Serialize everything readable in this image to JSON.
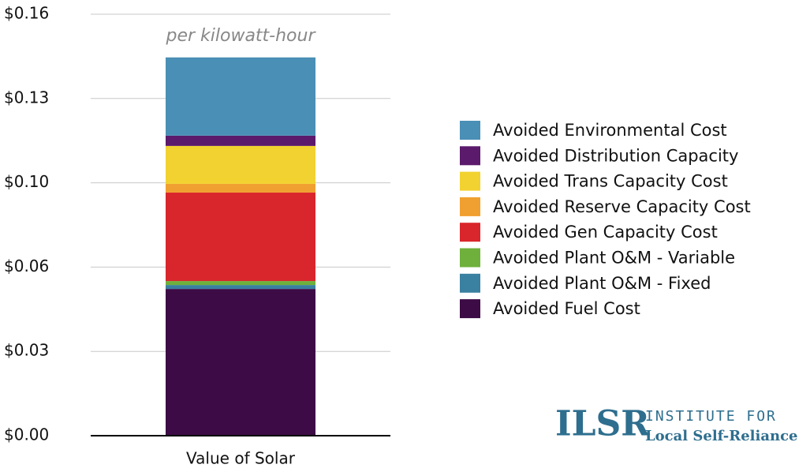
{
  "chart_data": {
    "type": "stacked_bar",
    "subtitle": "per kilowatt-hour",
    "categories": [
      "Value of Solar"
    ],
    "series": [
      {
        "name": "Avoided Fuel Cost",
        "color": "#3d0b45",
        "values": [
          0.0557
        ]
      },
      {
        "name": "Avoided Plant O&M - Fixed",
        "color": "#3a80a0",
        "values": [
          0.0015
        ]
      },
      {
        "name": "Avoided Plant O&M - Variable",
        "color": "#6fb03c",
        "values": [
          0.0015
        ]
      },
      {
        "name": "Avoided Gen Capacity Cost",
        "color": "#d9262c",
        "values": [
          0.0336
        ]
      },
      {
        "name": "Avoided Reserve Capacity Cost",
        "color": "#f0a030",
        "values": [
          0.0033
        ]
      },
      {
        "name": "Avoided Trans Capacity Cost",
        "color": "#f2d230",
        "values": [
          0.0144
        ]
      },
      {
        "name": "Avoided Distribution Capacity",
        "color": "#5b1a6b",
        "values": [
          0.0039
        ]
      },
      {
        "name": "Avoided Environmental Cost",
        "color": "#4a8fb5",
        "values": [
          0.0297
        ]
      }
    ],
    "ylim": [
      0,
      0.16
    ],
    "yticks": [
      {
        "value": 0,
        "label": "$0.00"
      },
      {
        "value": 0.032,
        "label": "$0.03"
      },
      {
        "value": 0.064,
        "label": "$0.06"
      },
      {
        "value": 0.096,
        "label": "$0.10"
      },
      {
        "value": 0.128,
        "label": "$0.13"
      },
      {
        "value": 0.16,
        "label": "$0.16"
      }
    ],
    "grid": true,
    "legend": "right"
  },
  "logo": {
    "mark": "ILSR",
    "line1": "INSTITUTE FOR",
    "line2": "Local Self-Reliance"
  }
}
